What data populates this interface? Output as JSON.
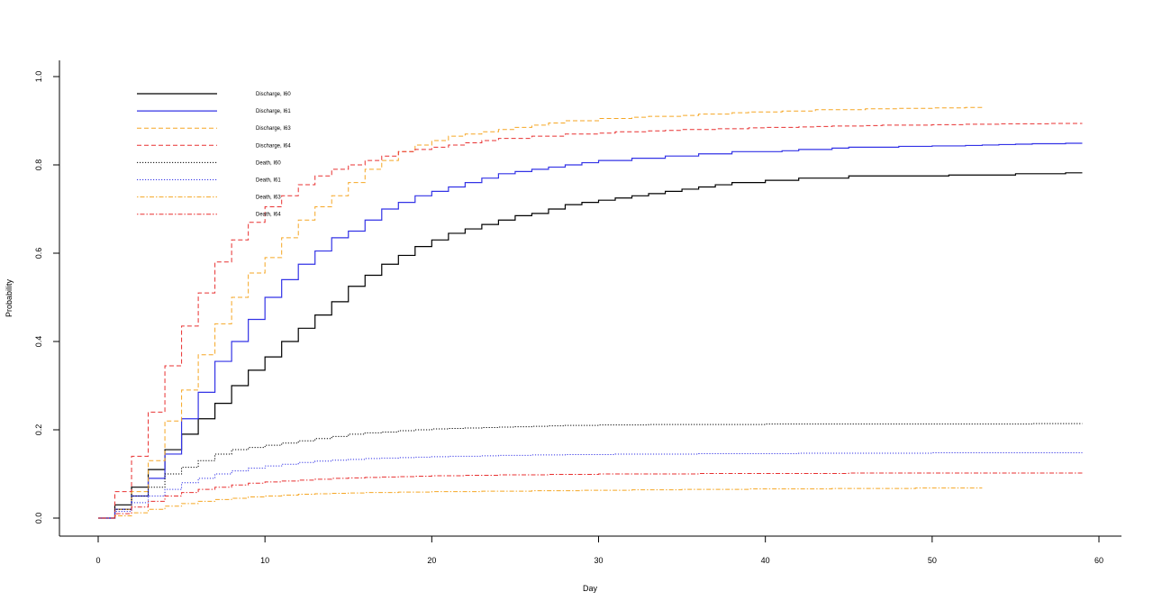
{
  "chart_data": {
    "type": "line",
    "step": true,
    "xlabel": "Day",
    "ylabel": "Probability",
    "xlim": [
      0,
      60
    ],
    "ylim": [
      0,
      1.0
    ],
    "x_ticks": [
      0,
      10,
      20,
      30,
      40,
      50,
      60
    ],
    "y_ticks": [
      "0.0",
      "0.2",
      "0.4",
      "0.6",
      "0.8",
      "1.0"
    ],
    "grid": false,
    "legend_position": "top-left",
    "series": [
      {
        "name": "Discharge, I60",
        "color": "#000000",
        "dash": "solid",
        "x": [
          0,
          1,
          2,
          3,
          4,
          5,
          6,
          7,
          8,
          9,
          10,
          11,
          12,
          13,
          14,
          15,
          16,
          17,
          18,
          19,
          20,
          21,
          22,
          23,
          24,
          25,
          26,
          27,
          28,
          29,
          30,
          31,
          32,
          33,
          34,
          35,
          36,
          37,
          38,
          39,
          40,
          41,
          42,
          43,
          44,
          45,
          46,
          47,
          48,
          49,
          50,
          51,
          52,
          53,
          54,
          55,
          56,
          57,
          58,
          59
        ],
        "y": [
          0,
          0.03,
          0.07,
          0.11,
          0.155,
          0.19,
          0.225,
          0.26,
          0.3,
          0.335,
          0.365,
          0.4,
          0.43,
          0.46,
          0.49,
          0.525,
          0.55,
          0.575,
          0.595,
          0.615,
          0.63,
          0.645,
          0.655,
          0.665,
          0.675,
          0.685,
          0.69,
          0.7,
          0.71,
          0.715,
          0.72,
          0.725,
          0.73,
          0.735,
          0.74,
          0.745,
          0.75,
          0.755,
          0.76,
          0.76,
          0.765,
          0.765,
          0.77,
          0.77,
          0.77,
          0.775,
          0.775,
          0.775,
          0.775,
          0.775,
          0.775,
          0.777,
          0.777,
          0.777,
          0.777,
          0.78,
          0.78,
          0.78,
          0.782,
          0.782
        ]
      },
      {
        "name": "Discharge, I61",
        "color": "#3333e6",
        "dash": "solid",
        "x": [
          0,
          1,
          2,
          3,
          4,
          5,
          6,
          7,
          8,
          9,
          10,
          11,
          12,
          13,
          14,
          15,
          16,
          17,
          18,
          19,
          20,
          21,
          22,
          23,
          24,
          25,
          26,
          27,
          28,
          29,
          30,
          31,
          32,
          33,
          34,
          35,
          36,
          37,
          38,
          39,
          40,
          41,
          42,
          43,
          44,
          45,
          46,
          47,
          48,
          49,
          50,
          51,
          52,
          53,
          54,
          55,
          56,
          57,
          58,
          59
        ],
        "y": [
          0,
          0.02,
          0.05,
          0.09,
          0.145,
          0.225,
          0.285,
          0.355,
          0.4,
          0.45,
          0.5,
          0.54,
          0.575,
          0.605,
          0.635,
          0.65,
          0.675,
          0.7,
          0.715,
          0.73,
          0.74,
          0.75,
          0.76,
          0.77,
          0.78,
          0.785,
          0.79,
          0.795,
          0.8,
          0.805,
          0.81,
          0.81,
          0.815,
          0.815,
          0.82,
          0.82,
          0.825,
          0.825,
          0.83,
          0.83,
          0.83,
          0.832,
          0.835,
          0.835,
          0.838,
          0.84,
          0.84,
          0.84,
          0.842,
          0.842,
          0.843,
          0.843,
          0.844,
          0.845,
          0.846,
          0.847,
          0.848,
          0.848,
          0.849,
          0.849
        ]
      },
      {
        "name": "Discharge, I63",
        "color": "#f5a623",
        "dash": "dashed",
        "x": [
          0,
          1,
          2,
          3,
          4,
          5,
          6,
          7,
          8,
          9,
          10,
          11,
          12,
          13,
          14,
          15,
          16,
          17,
          18,
          19,
          20,
          21,
          22,
          23,
          24,
          25,
          26,
          27,
          28,
          29,
          30,
          31,
          32,
          33,
          34,
          35,
          36,
          37,
          38,
          39,
          40,
          41,
          42,
          43,
          44,
          45,
          46,
          47,
          48,
          49,
          50,
          51,
          52,
          53
        ],
        "y": [
          0,
          0.02,
          0.06,
          0.13,
          0.22,
          0.29,
          0.37,
          0.44,
          0.5,
          0.555,
          0.59,
          0.635,
          0.675,
          0.705,
          0.73,
          0.76,
          0.79,
          0.81,
          0.83,
          0.845,
          0.855,
          0.865,
          0.87,
          0.875,
          0.88,
          0.885,
          0.89,
          0.895,
          0.9,
          0.9,
          0.905,
          0.905,
          0.908,
          0.91,
          0.91,
          0.912,
          0.915,
          0.915,
          0.918,
          0.92,
          0.92,
          0.922,
          0.922,
          0.925,
          0.925,
          0.925,
          0.927,
          0.927,
          0.928,
          0.928,
          0.929,
          0.929,
          0.93,
          0.93
        ]
      },
      {
        "name": "Discharge, I64",
        "color": "#e83030",
        "dash": "dashed",
        "x": [
          0,
          1,
          2,
          3,
          4,
          5,
          6,
          7,
          8,
          9,
          10,
          11,
          12,
          13,
          14,
          15,
          16,
          17,
          18,
          19,
          20,
          21,
          22,
          23,
          24,
          25,
          26,
          27,
          28,
          29,
          30,
          31,
          32,
          33,
          34,
          35,
          36,
          37,
          38,
          39,
          40,
          41,
          42,
          43,
          44,
          45,
          46,
          47,
          48,
          49,
          50,
          51,
          52,
          53,
          54,
          55,
          56,
          57,
          58,
          59
        ],
        "y": [
          0,
          0.06,
          0.14,
          0.24,
          0.345,
          0.435,
          0.51,
          0.58,
          0.63,
          0.67,
          0.705,
          0.73,
          0.755,
          0.775,
          0.79,
          0.8,
          0.81,
          0.82,
          0.83,
          0.835,
          0.84,
          0.845,
          0.85,
          0.855,
          0.86,
          0.86,
          0.865,
          0.865,
          0.87,
          0.87,
          0.872,
          0.875,
          0.875,
          0.877,
          0.878,
          0.88,
          0.88,
          0.882,
          0.882,
          0.884,
          0.885,
          0.885,
          0.886,
          0.887,
          0.888,
          0.888,
          0.889,
          0.89,
          0.89,
          0.89,
          0.891,
          0.891,
          0.892,
          0.892,
          0.893,
          0.893,
          0.893,
          0.894,
          0.894,
          0.894
        ]
      },
      {
        "name": "Death, I60",
        "color": "#000000",
        "dash": "dotted",
        "x": [
          0,
          1,
          2,
          3,
          4,
          5,
          6,
          7,
          8,
          9,
          10,
          11,
          12,
          13,
          14,
          15,
          16,
          17,
          18,
          19,
          20,
          21,
          22,
          23,
          24,
          25,
          26,
          27,
          28,
          29,
          30,
          31,
          32,
          33,
          34,
          35,
          36,
          37,
          38,
          39,
          40,
          41,
          42,
          43,
          44,
          45,
          46,
          47,
          48,
          49,
          50,
          51,
          52,
          53,
          54,
          55,
          56,
          57,
          58,
          59
        ],
        "y": [
          0,
          0.02,
          0.05,
          0.07,
          0.1,
          0.115,
          0.13,
          0.145,
          0.155,
          0.16,
          0.165,
          0.17,
          0.175,
          0.18,
          0.185,
          0.19,
          0.193,
          0.195,
          0.198,
          0.2,
          0.202,
          0.203,
          0.204,
          0.205,
          0.206,
          0.207,
          0.208,
          0.209,
          0.21,
          0.21,
          0.211,
          0.211,
          0.211,
          0.212,
          0.212,
          0.212,
          0.212,
          0.212,
          0.212,
          0.212,
          0.213,
          0.213,
          0.213,
          0.213,
          0.213,
          0.213,
          0.213,
          0.213,
          0.213,
          0.213,
          0.213,
          0.213,
          0.213,
          0.213,
          0.213,
          0.213,
          0.214,
          0.214,
          0.214,
          0.214
        ]
      },
      {
        "name": "Death, I61",
        "color": "#3333e6",
        "dash": "dotted",
        "x": [
          0,
          1,
          2,
          3,
          4,
          5,
          6,
          7,
          8,
          9,
          10,
          11,
          12,
          13,
          14,
          15,
          16,
          17,
          18,
          19,
          20,
          21,
          22,
          23,
          24,
          25,
          26,
          27,
          28,
          29,
          30,
          31,
          32,
          33,
          34,
          35,
          36,
          37,
          38,
          39,
          40,
          41,
          42,
          43,
          44,
          45,
          46,
          47,
          48,
          49,
          50,
          51,
          52,
          53,
          54,
          55,
          56,
          57,
          58,
          59
        ],
        "y": [
          0,
          0.015,
          0.035,
          0.05,
          0.065,
          0.08,
          0.09,
          0.1,
          0.107,
          0.113,
          0.118,
          0.122,
          0.126,
          0.129,
          0.131,
          0.133,
          0.135,
          0.136,
          0.137,
          0.138,
          0.139,
          0.14,
          0.14,
          0.141,
          0.142,
          0.142,
          0.143,
          0.143,
          0.144,
          0.144,
          0.144,
          0.145,
          0.145,
          0.145,
          0.145,
          0.145,
          0.146,
          0.146,
          0.146,
          0.146,
          0.146,
          0.146,
          0.147,
          0.147,
          0.147,
          0.147,
          0.147,
          0.147,
          0.147,
          0.147,
          0.148,
          0.148,
          0.148,
          0.148,
          0.148,
          0.148,
          0.148,
          0.148,
          0.148,
          0.148
        ]
      },
      {
        "name": "Death, I63",
        "color": "#f5a623",
        "dash": "dotdash",
        "x": [
          0,
          1,
          2,
          3,
          4,
          5,
          6,
          7,
          8,
          9,
          10,
          11,
          12,
          13,
          14,
          15,
          16,
          17,
          18,
          19,
          20,
          21,
          22,
          23,
          24,
          25,
          26,
          27,
          28,
          29,
          30,
          31,
          32,
          33,
          34,
          35,
          36,
          37,
          38,
          39,
          40,
          41,
          42,
          43,
          44,
          45,
          46,
          47,
          48,
          49,
          50,
          51,
          52,
          53
        ],
        "y": [
          0,
          0.005,
          0.012,
          0.02,
          0.027,
          0.033,
          0.038,
          0.042,
          0.045,
          0.048,
          0.05,
          0.052,
          0.054,
          0.055,
          0.056,
          0.057,
          0.058,
          0.058,
          0.059,
          0.059,
          0.06,
          0.06,
          0.06,
          0.061,
          0.061,
          0.061,
          0.062,
          0.062,
          0.062,
          0.063,
          0.063,
          0.063,
          0.064,
          0.064,
          0.064,
          0.065,
          0.065,
          0.065,
          0.065,
          0.066,
          0.066,
          0.066,
          0.066,
          0.066,
          0.067,
          0.067,
          0.067,
          0.067,
          0.067,
          0.068,
          0.068,
          0.068,
          0.068,
          0.068
        ]
      },
      {
        "name": "Death, I64",
        "color": "#e83030",
        "dash": "dotdash",
        "x": [
          0,
          1,
          2,
          3,
          4,
          5,
          6,
          7,
          8,
          9,
          10,
          11,
          12,
          13,
          14,
          15,
          16,
          17,
          18,
          19,
          20,
          21,
          22,
          23,
          24,
          25,
          26,
          27,
          28,
          29,
          30,
          31,
          32,
          33,
          34,
          35,
          36,
          37,
          38,
          39,
          40,
          41,
          42,
          43,
          44,
          45,
          46,
          47,
          48,
          49,
          50,
          51,
          52,
          53,
          54,
          55,
          56,
          57,
          58,
          59
        ],
        "y": [
          0,
          0.01,
          0.025,
          0.038,
          0.05,
          0.058,
          0.065,
          0.07,
          0.075,
          0.079,
          0.082,
          0.084,
          0.086,
          0.088,
          0.09,
          0.091,
          0.092,
          0.093,
          0.094,
          0.095,
          0.096,
          0.096,
          0.097,
          0.097,
          0.098,
          0.098,
          0.098,
          0.099,
          0.099,
          0.099,
          0.1,
          0.1,
          0.1,
          0.1,
          0.1,
          0.1,
          0.101,
          0.101,
          0.101,
          0.101,
          0.101,
          0.101,
          0.101,
          0.101,
          0.101,
          0.102,
          0.102,
          0.102,
          0.102,
          0.102,
          0.102,
          0.102,
          0.102,
          0.102,
          0.102,
          0.102,
          0.102,
          0.102,
          0.102,
          0.102
        ]
      }
    ]
  }
}
